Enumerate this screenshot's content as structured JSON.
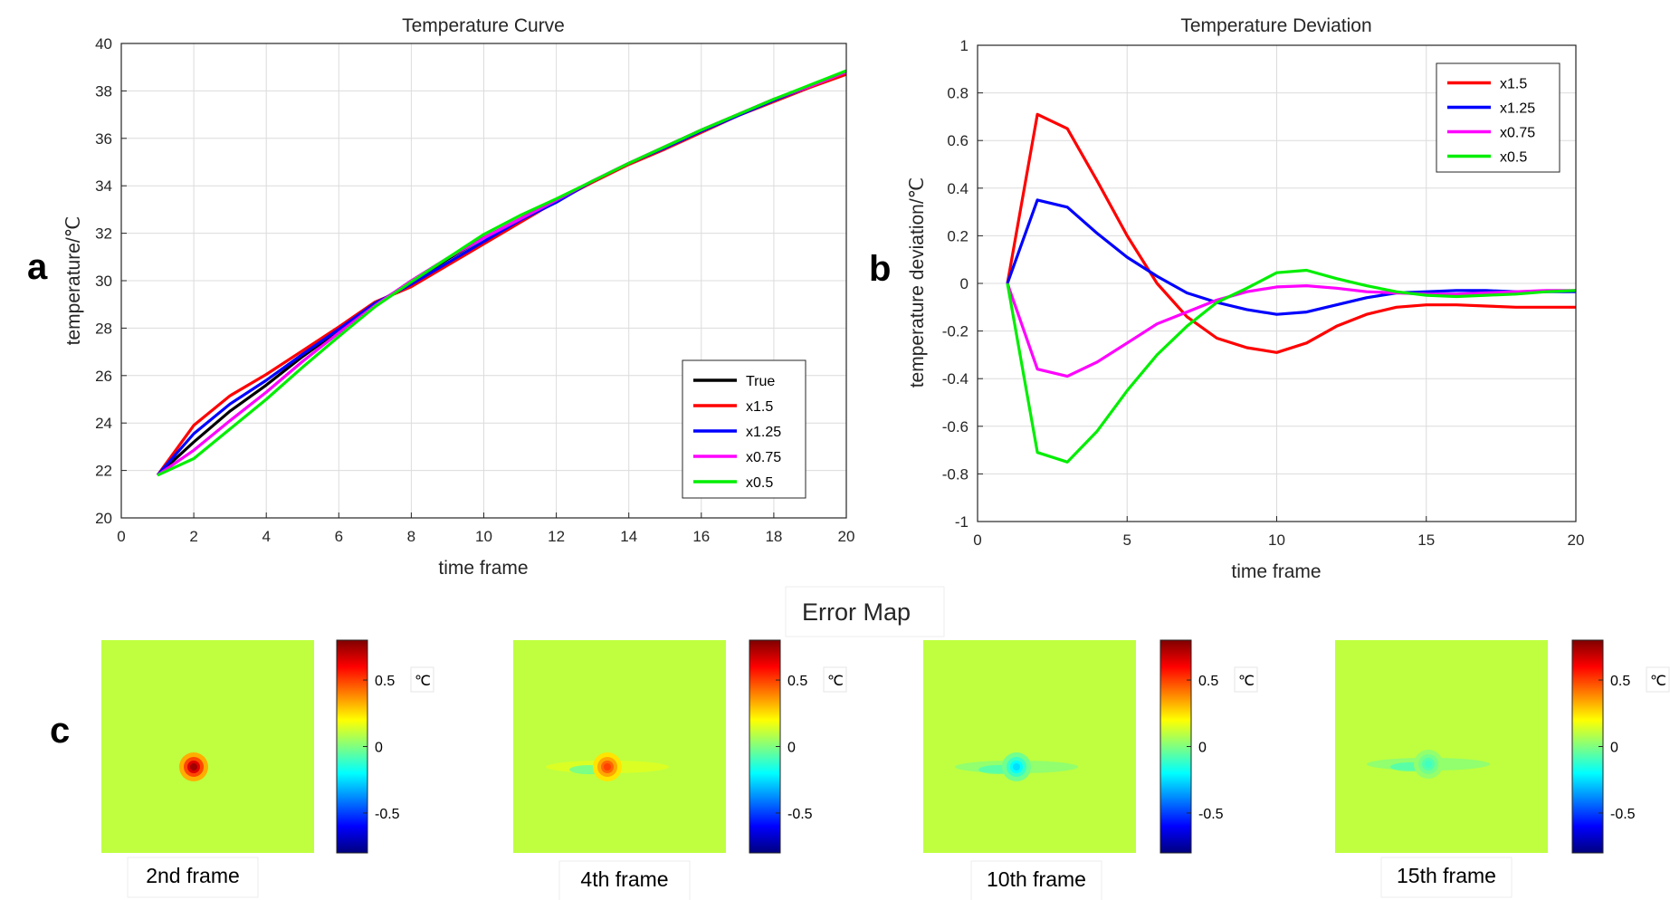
{
  "panels": {
    "a": "a",
    "b": "b",
    "c": "c"
  },
  "chart_data": [
    {
      "type": "line",
      "title": "Temperature Curve",
      "xlabel": "time frame",
      "ylabel": "temperature/℃",
      "xlim": [
        0,
        20
      ],
      "ylim": [
        20,
        40
      ],
      "xticks": [
        0,
        2,
        4,
        6,
        8,
        10,
        12,
        14,
        16,
        18,
        20
      ],
      "yticks": [
        20,
        22,
        24,
        26,
        28,
        30,
        32,
        34,
        36,
        38,
        40
      ],
      "grid": true,
      "legend_position": "bottom-right",
      "x": [
        1,
        2,
        3,
        4,
        5,
        6,
        7,
        8,
        9,
        10,
        11,
        12,
        13,
        14,
        15,
        16,
        17,
        18,
        19,
        20
      ],
      "series": [
        {
          "name": "True",
          "color": "#000000",
          "values": [
            21.8,
            23.2,
            24.5,
            25.6,
            26.8,
            27.9,
            29.0,
            29.95,
            30.9,
            31.8,
            32.6,
            33.4,
            34.2,
            34.95,
            35.65,
            36.35,
            37.0,
            37.65,
            38.2,
            38.8
          ]
        },
        {
          "name": "x1.5",
          "color": "#ff0000",
          "values": [
            21.8,
            23.9,
            25.15,
            26.05,
            27.05,
            28.05,
            29.1,
            29.75,
            30.65,
            31.55,
            32.45,
            33.35,
            34.15,
            34.9,
            35.55,
            36.25,
            36.95,
            37.55,
            38.15,
            38.7
          ]
        },
        {
          "name": "x1.25",
          "color": "#0000ff",
          "values": [
            21.8,
            23.55,
            24.8,
            25.8,
            26.9,
            27.95,
            29.05,
            29.85,
            30.75,
            31.65,
            32.55,
            33.3,
            34.2,
            34.95,
            35.6,
            36.3,
            36.95,
            37.6,
            38.2,
            38.8
          ]
        },
        {
          "name": "x0.75",
          "color": "#ff00ff",
          "values": [
            21.8,
            22.85,
            24.1,
            25.3,
            26.6,
            27.8,
            28.95,
            30.0,
            30.95,
            31.8,
            32.6,
            33.4,
            34.2,
            34.95,
            35.65,
            36.35,
            37.0,
            37.65,
            38.2,
            38.8
          ]
        },
        {
          "name": "x0.5",
          "color": "#00ee00",
          "values": [
            21.8,
            22.5,
            23.75,
            25.0,
            26.35,
            27.65,
            28.9,
            29.95,
            30.95,
            31.95,
            32.75,
            33.45,
            34.2,
            34.95,
            35.65,
            36.35,
            37.0,
            37.65,
            38.25,
            38.85
          ]
        }
      ]
    },
    {
      "type": "line",
      "title": "Temperature Deviation",
      "xlabel": "time frame",
      "ylabel": "temperature deviation/℃",
      "xlim": [
        0,
        20
      ],
      "ylim": [
        -1,
        1
      ],
      "xticks": [
        0,
        5,
        10,
        15,
        20
      ],
      "yticks": [
        -1,
        -0.8,
        -0.6,
        -0.4,
        -0.2,
        0,
        0.2,
        0.4,
        0.6,
        0.8,
        1
      ],
      "grid": true,
      "legend_position": "top-right",
      "x": [
        1,
        2,
        3,
        4,
        5,
        6,
        7,
        8,
        9,
        10,
        11,
        12,
        13,
        14,
        15,
        16,
        17,
        18,
        19,
        20
      ],
      "series": [
        {
          "name": "x1.5",
          "color": "#ff0000",
          "values": [
            0,
            0.71,
            0.65,
            0.43,
            0.2,
            0.0,
            -0.14,
            -0.23,
            -0.27,
            -0.29,
            -0.25,
            -0.18,
            -0.13,
            -0.1,
            -0.09,
            -0.09,
            -0.095,
            -0.1,
            -0.1,
            -0.1
          ]
        },
        {
          "name": "x1.25",
          "color": "#0000ff",
          "values": [
            0,
            0.35,
            0.32,
            0.21,
            0.11,
            0.03,
            -0.04,
            -0.08,
            -0.11,
            -0.13,
            -0.12,
            -0.09,
            -0.06,
            -0.04,
            -0.035,
            -0.03,
            -0.03,
            -0.035,
            -0.035,
            -0.035
          ]
        },
        {
          "name": "x0.75",
          "color": "#ff00ff",
          "values": [
            0,
            -0.36,
            -0.39,
            -0.33,
            -0.25,
            -0.17,
            -0.12,
            -0.07,
            -0.035,
            -0.015,
            -0.01,
            -0.02,
            -0.035,
            -0.04,
            -0.045,
            -0.045,
            -0.04,
            -0.035,
            -0.03,
            -0.03
          ]
        },
        {
          "name": "x0.5",
          "color": "#00ee00",
          "values": [
            0,
            -0.71,
            -0.75,
            -0.62,
            -0.45,
            -0.3,
            -0.18,
            -0.08,
            -0.02,
            0.045,
            0.055,
            0.02,
            -0.01,
            -0.035,
            -0.05,
            -0.055,
            -0.05,
            -0.045,
            -0.035,
            -0.03
          ]
        }
      ]
    },
    {
      "type": "heatmap",
      "title": "Error Map",
      "colorbar_unit": "℃",
      "colorbar_ticks": [
        "0.5",
        "0",
        "-0.5"
      ],
      "colorbar_range": [
        -0.8,
        0.8
      ],
      "maps": [
        {
          "caption": "2nd frame",
          "peak": 0.75
        },
        {
          "caption": "4th frame",
          "peak": 0.5
        },
        {
          "caption": "10th frame",
          "peak": -0.25
        },
        {
          "caption": "15th frame",
          "peak": -0.1
        }
      ]
    }
  ]
}
